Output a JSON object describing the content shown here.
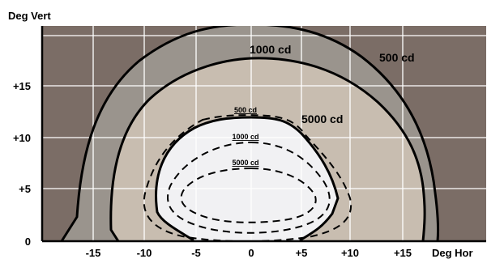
{
  "diagram": {
    "y_axis_label": "Deg Vert",
    "x_axis_label": "Deg Hor",
    "x_ticks": [
      "-15",
      "-10",
      "-5",
      "0",
      "+5",
      "+10",
      "+15"
    ],
    "y_ticks": [
      "0",
      "+5",
      "+10",
      "+15"
    ],
    "solid_contour_labels": {
      "outer": "500 cd",
      "middle": "1000 cd",
      "inner": "5000 cd"
    },
    "dashed_contour_labels": {
      "outer": "500 cd",
      "middle": "1000 cd",
      "inner": "5000 cd"
    },
    "colors": {
      "background_zone": "#7b6d66",
      "zone_500": "#9a948d",
      "zone_1000": "#c8bdb0",
      "zone_5000": "#f1f1f3",
      "grid": "#ffffff",
      "contour": "#000000"
    }
  }
}
